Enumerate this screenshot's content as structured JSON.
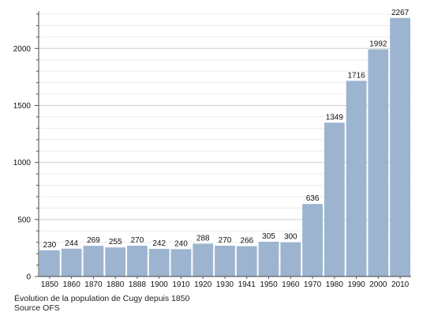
{
  "chart_data": {
    "type": "bar",
    "categories": [
      "1850",
      "1860",
      "1870",
      "1880",
      "1888",
      "1900",
      "1910",
      "1920",
      "1930",
      "1941",
      "1950",
      "1960",
      "1970",
      "1980",
      "1990",
      "2000",
      "2010"
    ],
    "values": [
      230,
      244,
      269,
      255,
      270,
      242,
      240,
      288,
      270,
      266,
      305,
      300,
      636,
      1349,
      1716,
      1992,
      2267
    ],
    "yticks": [
      0,
      500,
      1000,
      1500,
      2000
    ],
    "ylim": [
      0,
      2300
    ],
    "bar_color": "#9cb4d0",
    "grid": true,
    "caption_line1": "Évolution de la population de Cugy depuis 1850",
    "caption_line2": "Source OFS"
  }
}
